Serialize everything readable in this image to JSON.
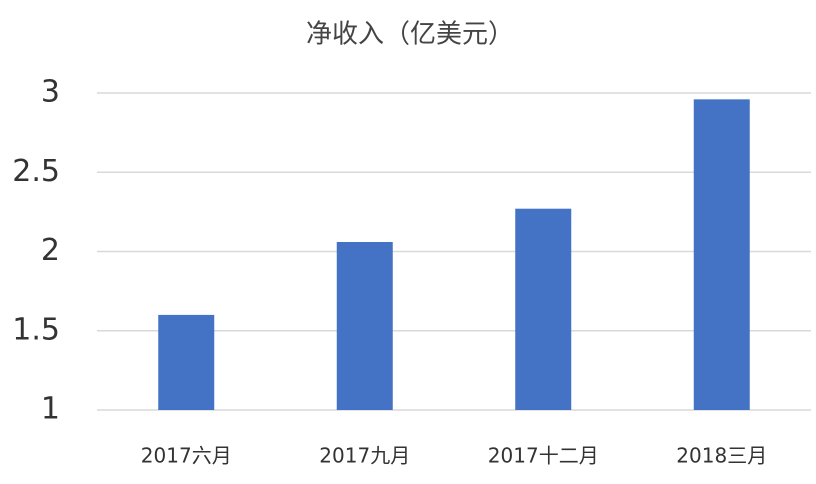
{
  "chart_data": {
    "type": "bar",
    "title": "净收入（亿美元）",
    "categories": [
      "2017六月",
      "2017九月",
      "2017十二月",
      "2018三月"
    ],
    "values": [
      1.6,
      2.06,
      2.27,
      2.96
    ],
    "color": "#4472c4",
    "ylim": [
      1,
      3
    ],
    "yticks": [
      1,
      1.5,
      2,
      2.5,
      3
    ],
    "grid": true
  }
}
